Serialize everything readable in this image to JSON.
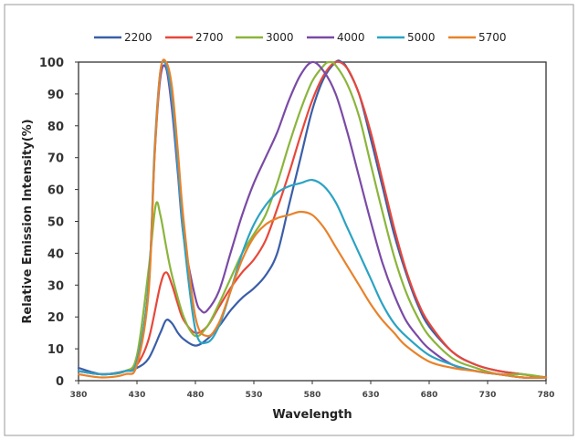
{
  "chart_data": {
    "type": "line",
    "xlabel": "Wavelength",
    "ylabel": "Relative Emission Intensity(%)",
    "xlim": [
      380,
      780
    ],
    "ylim": [
      0,
      100
    ],
    "xticks": [
      "380",
      "430",
      "480",
      "530",
      "580",
      "630",
      "680",
      "730",
      "780"
    ],
    "yticks": [
      "0",
      "10",
      "20",
      "30",
      "40",
      "50",
      "60",
      "70",
      "80",
      "90",
      "100"
    ],
    "grid": false,
    "legend_position": "top",
    "series": [
      {
        "name": "2200",
        "color": "#3a5ea8",
        "x": [
          380,
          400,
          420,
          430,
          440,
          450,
          455,
          460,
          465,
          470,
          480,
          490,
          500,
          510,
          520,
          530,
          540,
          550,
          560,
          570,
          580,
          590,
          600,
          605,
          610,
          620,
          630,
          640,
          650,
          660,
          670,
          680,
          700,
          720,
          740,
          760,
          780
        ],
        "y": [
          4,
          2,
          3,
          4,
          7,
          15,
          19,
          18,
          15,
          13,
          11,
          13,
          17,
          22,
          26,
          29,
          33,
          40,
          55,
          70,
          85,
          95,
          100,
          100,
          98,
          90,
          76,
          61,
          46,
          34,
          24,
          17,
          9,
          5,
          3,
          2,
          1
        ]
      },
      {
        "name": "2700",
        "color": "#e8473a",
        "x": [
          380,
          400,
          420,
          430,
          440,
          450,
          455,
          460,
          465,
          470,
          480,
          490,
          500,
          510,
          520,
          530,
          540,
          550,
          560,
          570,
          580,
          590,
          600,
          610,
          620,
          630,
          640,
          650,
          660,
          670,
          680,
          700,
          720,
          740,
          760,
          780
        ],
        "y": [
          3,
          2,
          3,
          5,
          13,
          30,
          34,
          30,
          24,
          19,
          15,
          17,
          23,
          29,
          34,
          38,
          44,
          54,
          65,
          77,
          88,
          96,
          100,
          98,
          90,
          78,
          63,
          48,
          35,
          25,
          18,
          9,
          5,
          3,
          2,
          1
        ]
      },
      {
        "name": "3000",
        "color": "#8ab53b",
        "x": [
          380,
          400,
          420,
          430,
          440,
          446,
          450,
          455,
          460,
          470,
          480,
          490,
          500,
          510,
          520,
          530,
          540,
          550,
          560,
          570,
          580,
          590,
          595,
          600,
          610,
          620,
          630,
          640,
          650,
          660,
          670,
          680,
          700,
          720,
          740,
          760,
          780
        ],
        "y": [
          3,
          2,
          3,
          8,
          35,
          55,
          52,
          42,
          33,
          20,
          14,
          17,
          24,
          32,
          40,
          46,
          52,
          62,
          74,
          85,
          94,
          99,
          100,
          99,
          93,
          83,
          68,
          53,
          39,
          28,
          20,
          14,
          7,
          4,
          2,
          2,
          1
        ]
      },
      {
        "name": "4000",
        "color": "#7a4aa6",
        "x": [
          380,
          400,
          420,
          430,
          440,
          445,
          450,
          455,
          460,
          465,
          470,
          480,
          485,
          490,
          500,
          510,
          520,
          530,
          540,
          550,
          560,
          570,
          580,
          590,
          600,
          610,
          620,
          630,
          640,
          650,
          660,
          670,
          680,
          700,
          720,
          740,
          760,
          780
        ],
        "y": [
          3,
          2,
          3,
          6,
          30,
          70,
          95,
          98,
          85,
          65,
          45,
          26,
          22,
          22,
          28,
          40,
          52,
          62,
          70,
          78,
          88,
          96,
          100,
          97,
          90,
          78,
          64,
          50,
          37,
          27,
          19,
          14,
          10,
          5,
          3,
          2,
          1,
          1
        ]
      },
      {
        "name": "5000",
        "color": "#2ba3c3",
        "x": [
          380,
          400,
          420,
          430,
          440,
          445,
          450,
          455,
          460,
          465,
          470,
          480,
          490,
          500,
          510,
          520,
          530,
          540,
          550,
          560,
          570,
          580,
          590,
          600,
          610,
          620,
          630,
          640,
          650,
          660,
          680,
          700,
          720,
          740,
          760,
          780
        ],
        "y": [
          3,
          2,
          3,
          6,
          30,
          72,
          97,
          99,
          88,
          67,
          45,
          16,
          12,
          17,
          28,
          40,
          49,
          55,
          59,
          61,
          62,
          63,
          61,
          56,
          48,
          40,
          32,
          24,
          18,
          14,
          8,
          5,
          3,
          2,
          1,
          1
        ]
      },
      {
        "name": "5700",
        "color": "#e8822a",
        "x": [
          380,
          400,
          420,
          430,
          440,
          445,
          450,
          455,
          460,
          465,
          470,
          480,
          490,
          500,
          510,
          520,
          530,
          540,
          550,
          560,
          570,
          580,
          590,
          600,
          610,
          620,
          630,
          640,
          650,
          660,
          680,
          700,
          720,
          740,
          760,
          780
        ],
        "y": [
          2,
          1,
          2,
          5,
          28,
          70,
          97,
          100,
          92,
          72,
          50,
          20,
          14,
          18,
          28,
          38,
          45,
          49,
          51,
          52,
          53,
          52,
          48,
          42,
          36,
          30,
          24,
          19,
          15,
          11,
          6,
          4,
          3,
          2,
          1,
          1
        ]
      }
    ]
  }
}
